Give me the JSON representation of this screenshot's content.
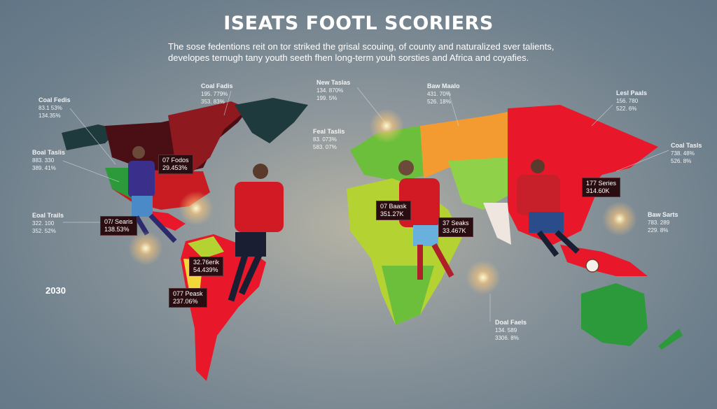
{
  "title": "ISEATS FOOTL SCORIERS",
  "subtitle": "The sose fedentions reit on tor striked the grisal scouing, of county and naturalized sver talients, developes ternugh tany youth seeth fhen long-term youh sorsties and Africa and coyafies.",
  "year": "2030",
  "colors": {
    "red": "#e8182a",
    "dark_red": "#8e1a1f",
    "orange": "#f39a30",
    "green": "#3aa83a",
    "yellow_green": "#b4d232",
    "dark_teal": "#1f3a3c"
  },
  "labels": [
    {
      "title": "Coal Fedis",
      "v1": "83.1 53%",
      "v2": "134.35%"
    },
    {
      "title": "Coal Fadis",
      "v1": "195. 779%",
      "v2": "353. 83%"
    },
    {
      "title": "New Taslas",
      "v1": "134. 870%",
      "v2": "199. 5%"
    },
    {
      "title": "Baw Maalo",
      "v1": "431. 70%",
      "v2": "526. 18%"
    },
    {
      "title": "Lesl Paals",
      "v1": "156. 780",
      "v2": "522. 6%"
    },
    {
      "title": "Feal Taslis",
      "v1": "83. 073%",
      "v2": "583. 07%"
    },
    {
      "title": "Coal Tasls",
      "v1": "738. 48%",
      "v2": "526. 8%"
    },
    {
      "title": "Boal Taslis",
      "v1": "883. 330",
      "v2": "389. 41%"
    },
    {
      "title": "Eoal Trails",
      "v1": "322. 100",
      "v2": "352. 52%"
    },
    {
      "title": "Doal Faels",
      "v1": "134. 589",
      "v2": "3306. 8%"
    },
    {
      "title": "Baw Sarts",
      "v1": "783. 289",
      "v2": "229. 8%"
    }
  ],
  "boxes": [
    {
      "title": "07 Fodos",
      "value": "29.453%"
    },
    {
      "title": "07/ Searis",
      "value": "138.53%"
    },
    {
      "title": "32.76erik",
      "value": "54.439%"
    },
    {
      "title": "077 Peask",
      "value": "237.06%"
    },
    {
      "title": "07 Baask",
      "value": "351.27K"
    },
    {
      "title": "37 Seaks",
      "value": "33.467K"
    },
    {
      "title": "177 Series",
      "value": "314.60K"
    }
  ]
}
